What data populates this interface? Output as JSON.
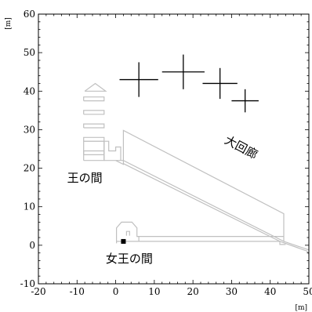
{
  "chart_data": {
    "type": "scatter",
    "title": "",
    "xlabel": "[m]",
    "ylabel": "[m]",
    "xlim": [
      -20,
      50
    ],
    "ylim": [
      -10,
      60
    ],
    "grid": false,
    "x_ticks": [
      -20,
      -10,
      0,
      10,
      20,
      30,
      40,
      50
    ],
    "y_ticks": [
      -10,
      0,
      10,
      20,
      30,
      40,
      50,
      60
    ],
    "x_tick_labels": [
      "-20",
      "-10",
      "0",
      "10",
      "20",
      "30",
      "40",
      "50"
    ],
    "y_tick_labels": [
      "-10",
      "0",
      "10",
      "20",
      "30",
      "40",
      "50",
      "60"
    ],
    "series": [
      {
        "marker": "cross",
        "points": [
          {
            "x": 6,
            "y": 43,
            "xerr": 5,
            "yerr": 4.5
          },
          {
            "x": 17.5,
            "y": 45,
            "xerr": 5.5,
            "yerr": 4.5
          },
          {
            "x": 27,
            "y": 42,
            "xerr": 4.5,
            "yerr": 4
          },
          {
            "x": 33.5,
            "y": 37.5,
            "xerr": 3.5,
            "yerr": 3
          }
        ]
      }
    ],
    "markers": [
      {
        "x": 2,
        "y": 1,
        "shape": "filled-square"
      }
    ],
    "annotations": [
      {
        "text": "大回廊",
        "x": 32,
        "y": 24.5
      },
      {
        "text": "王の間",
        "x": -8,
        "y": 16.5
      },
      {
        "text": "女王の間",
        "x": 3.5,
        "y": -4.5
      }
    ],
    "colors": {
      "markers": "#000000",
      "outline": "#c0c0c0",
      "axes": "#000000"
    }
  }
}
